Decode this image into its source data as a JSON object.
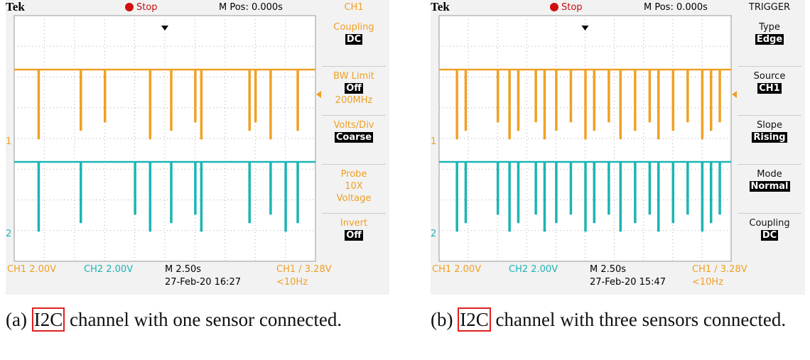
{
  "panels": [
    {
      "header": {
        "brand": "Tek",
        "status": "Stop",
        "position": "M Pos: 0.000s",
        "menu_title": "CH1"
      },
      "menu": [
        {
          "label": "Coupling",
          "value": "DC"
        },
        {
          "label": "BW Limit",
          "value": "Off",
          "notes": [
            "200MHz"
          ]
        },
        {
          "label": "Volts/Div",
          "value": "Coarse"
        },
        {
          "label": "Probe",
          "notes": [
            "10X",
            "Voltage"
          ]
        },
        {
          "label": "Invert",
          "value": "Off"
        }
      ],
      "channel_markers": [
        "1",
        "2"
      ],
      "footer": {
        "ch1": "CH1  2.00V",
        "ch2": "CH2  2.00V",
        "timebase": "M 2.50s",
        "date": "27-Feb-20 16:27",
        "trigger": "CH1 / 3.28V",
        "frequency": "<10Hz"
      },
      "caption": {
        "label": "(a)",
        "link": "I2C",
        "text": "channel with one sensor connected."
      }
    },
    {
      "header": {
        "brand": "Tek",
        "status": "Stop",
        "position": "M Pos: 0.000s",
        "menu_title": "TRIGGER"
      },
      "menu": [
        {
          "label": "Type",
          "value": "Edge"
        },
        {
          "label": "Source",
          "value": "CH1"
        },
        {
          "label": "Slope",
          "value": "Rising"
        },
        {
          "label": "Mode",
          "value": "Normal"
        },
        {
          "label": "Coupling",
          "value": "DC"
        }
      ],
      "channel_markers": [
        "1",
        "2"
      ],
      "footer": {
        "ch1": "CH1  2.00V",
        "ch2": "CH2  2.00V",
        "timebase": "M 2.50s",
        "date": "27-Feb-20 15:47",
        "trigger": "CH1 / 3.28V",
        "frequency": "<10Hz"
      },
      "caption": {
        "label": "(b)",
        "link": "I2C",
        "text": "channel with three sensors connected."
      }
    }
  ]
}
